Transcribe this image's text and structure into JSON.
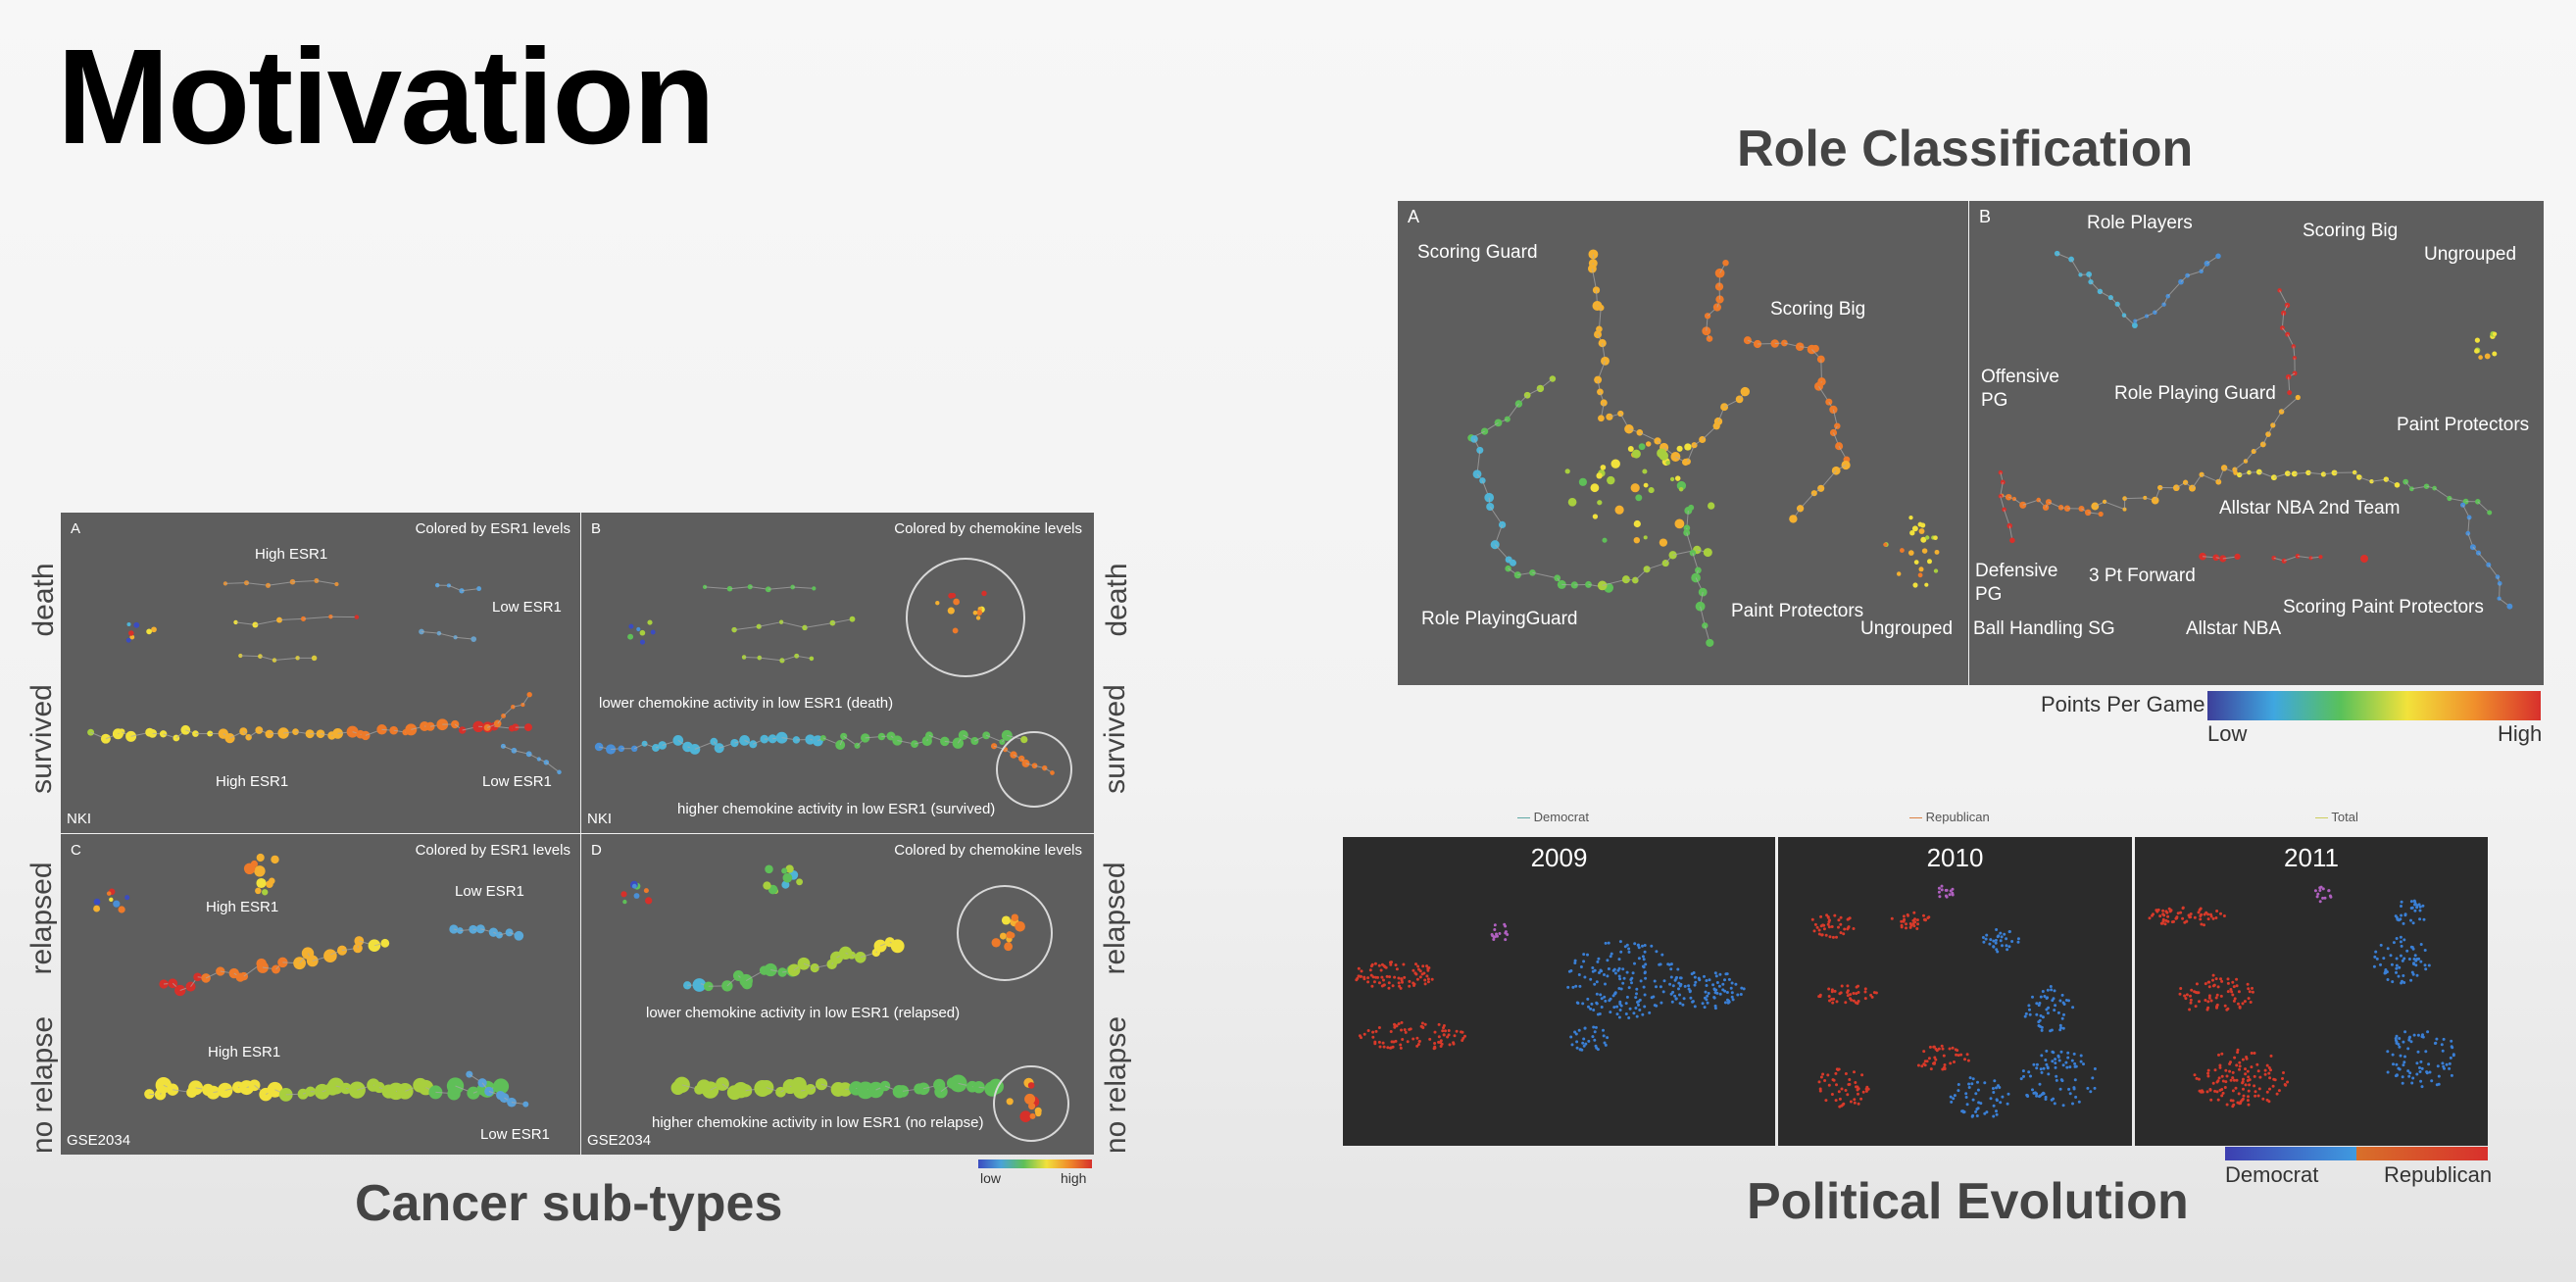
{
  "slide": {
    "title": "Motivation"
  },
  "cancer": {
    "title": "Cancer sub-types",
    "row_labels": [
      "death",
      "survived",
      "relapsed",
      "no relapse"
    ],
    "panels": {
      "A": {
        "letter": "A",
        "colored_by": "Colored by ESR1 levels",
        "dataset": "NKI",
        "labels": [
          "High ESR1",
          "Low ESR1",
          "High ESR1",
          "Low ESR1"
        ]
      },
      "B": {
        "letter": "B",
        "colored_by": "Colored by chemokine levels",
        "dataset": "NKI",
        "labels": [
          "lower chemokine activity in low ESR1 (death)",
          "higher chemokine activity in low ESR1 (survived)"
        ]
      },
      "C": {
        "letter": "C",
        "colored_by": "Colored by ESR1 levels",
        "dataset": "GSE2034",
        "labels": [
          "High ESR1",
          "Low ESR1",
          "High ESR1",
          "Low ESR1"
        ]
      },
      "D": {
        "letter": "D",
        "colored_by": "Colored by chemokine levels",
        "dataset": "GSE2034",
        "labels": [
          "lower chemokine activity in low ESR1 (relapsed)",
          "higher chemokine activity in low ESR1 (no relapse)"
        ]
      }
    },
    "legend": {
      "low": "low",
      "high": "high"
    }
  },
  "role": {
    "title": "Role Classification",
    "panelA": {
      "letter": "A",
      "labels": [
        "Scoring Guard",
        "Scoring Big",
        "Role PlayingGuard",
        "Paint Protectors",
        "Ungrouped"
      ]
    },
    "panelB": {
      "letter": "B",
      "labels": [
        "Role Players",
        "Scoring Big",
        "Ungrouped",
        "Offensive PG",
        "Role Playing Guard",
        "Paint Protectors",
        "Allstar NBA 2nd Team",
        "Defensive PG",
        "3 Pt Forward",
        "Ball Handling SG",
        "Allstar NBA",
        "Scoring Paint Protectors"
      ]
    },
    "legend": {
      "title": "Points Per Game",
      "low": "Low",
      "high": "High"
    }
  },
  "political": {
    "title": "Political Evolution",
    "top_legend": [
      "Democrat",
      "Republican",
      "Total"
    ],
    "years": [
      "2009",
      "2010",
      "2011"
    ],
    "legend": {
      "left": "Democrat",
      "right": "Republican"
    }
  },
  "colors": {
    "democrat": "#3a7fd5",
    "republican": "#d83a2a",
    "panel_gray": "#5e5e5e",
    "panel_dark": "#2b2b2b"
  }
}
